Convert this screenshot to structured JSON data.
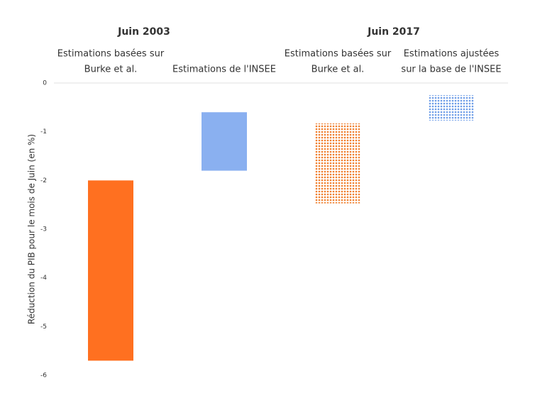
{
  "chart_data": {
    "type": "floating-bar",
    "groups": [
      "Juin 2003",
      "Juin 2017"
    ],
    "categories": [
      [
        "Estimations basées sur",
        "Burke et al."
      ],
      [
        "Estimations de  l'INSEE"
      ],
      [
        "Estimations basées sur",
        "Burke et al."
      ],
      [
        "Estimations ajustées",
        "sur la base de l'INSEE"
      ]
    ],
    "ranges": [
      [
        -2,
        -5.7
      ],
      [
        -0.6,
        -1.8
      ],
      [
        -0.83,
        -2.47
      ],
      [
        -0.25,
        -0.77
      ]
    ],
    "colors": [
      "#ff7020",
      "#8ab0f0",
      "#f08030",
      "#6f9ee8"
    ],
    "patterned": [
      false,
      false,
      true,
      true
    ],
    "ylabel": "Réduction du PIB pour le mois de Juin (en %)",
    "ylim": [
      -6,
      0
    ],
    "yticks": [
      0,
      -1,
      -2,
      -3,
      -4,
      -5,
      -6
    ]
  }
}
